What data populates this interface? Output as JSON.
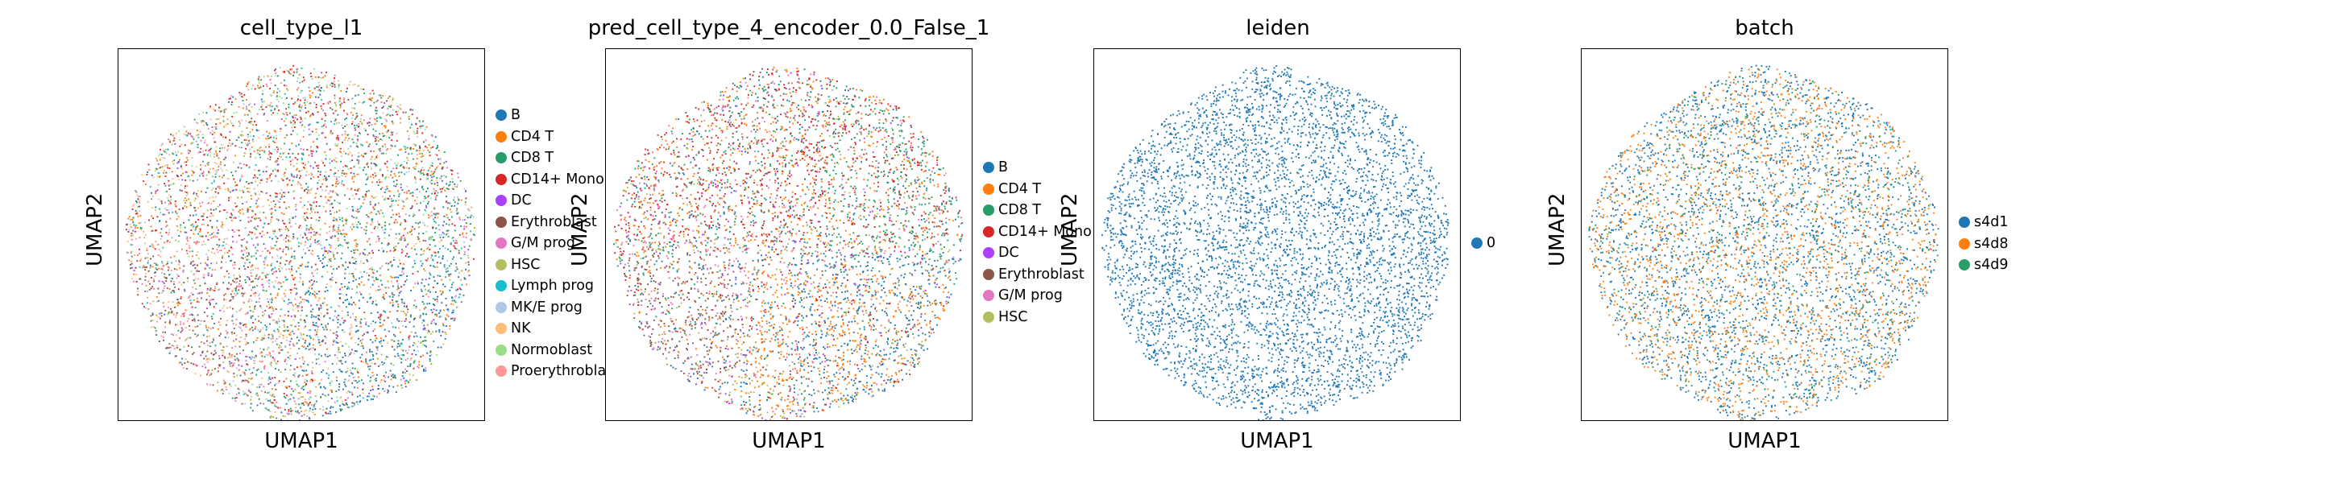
{
  "chart_data": [
    {
      "type": "scatter",
      "title": "cell_type_l1",
      "xlabel": "UMAP1",
      "ylabel": "UMAP2",
      "xticks": [],
      "yticks": [],
      "legend_position": "right",
      "categories": [
        {
          "name": "B",
          "color": "#1f77b4"
        },
        {
          "name": "CD4 T",
          "color": "#ff7f0e"
        },
        {
          "name": "CD8 T",
          "color": "#279e68"
        },
        {
          "name": "CD14+ Mono",
          "color": "#d62728"
        },
        {
          "name": "DC",
          "color": "#aa40fc"
        },
        {
          "name": "Erythroblast",
          "color": "#8c564b"
        },
        {
          "name": "G/M prog",
          "color": "#e377c2"
        },
        {
          "name": "HSC",
          "color": "#b5bd61"
        },
        {
          "name": "Lymph prog",
          "color": "#17becf"
        },
        {
          "name": "MK/E prog",
          "color": "#aec7e8"
        },
        {
          "name": "NK",
          "color": "#ffbb78"
        },
        {
          "name": "Normoblast",
          "color": "#98df8a"
        },
        {
          "name": "Proerythroblast",
          "color": "#ff9896"
        }
      ]
    },
    {
      "type": "scatter",
      "title": "pred_cell_type_4_encoder_0.0_False_1",
      "xlabel": "UMAP1",
      "ylabel": "UMAP2",
      "xticks": [],
      "yticks": [],
      "legend_position": "right",
      "categories": [
        {
          "name": "B",
          "color": "#1f77b4"
        },
        {
          "name": "CD4 T",
          "color": "#ff7f0e"
        },
        {
          "name": "CD8 T",
          "color": "#279e68"
        },
        {
          "name": "CD14+ Mono",
          "color": "#d62728"
        },
        {
          "name": "DC",
          "color": "#aa40fc"
        },
        {
          "name": "Erythroblast",
          "color": "#8c564b"
        },
        {
          "name": "G/M prog",
          "color": "#e377c2"
        },
        {
          "name": "HSC",
          "color": "#b5bd61"
        }
      ]
    },
    {
      "type": "scatter",
      "title": "leiden",
      "xlabel": "UMAP1",
      "ylabel": "UMAP2",
      "xticks": [],
      "yticks": [],
      "legend_position": "right",
      "categories": [
        {
          "name": "0",
          "color": "#1f77b4"
        }
      ]
    },
    {
      "type": "scatter",
      "title": "batch",
      "xlabel": "UMAP1",
      "ylabel": "UMAP2",
      "xticks": [],
      "yticks": [],
      "legend_position": "right",
      "categories": [
        {
          "name": "s4d1",
          "color": "#1f77b4"
        },
        {
          "name": "s4d8",
          "color": "#ff7f0e"
        },
        {
          "name": "s4d9",
          "color": "#279e68"
        }
      ]
    }
  ]
}
